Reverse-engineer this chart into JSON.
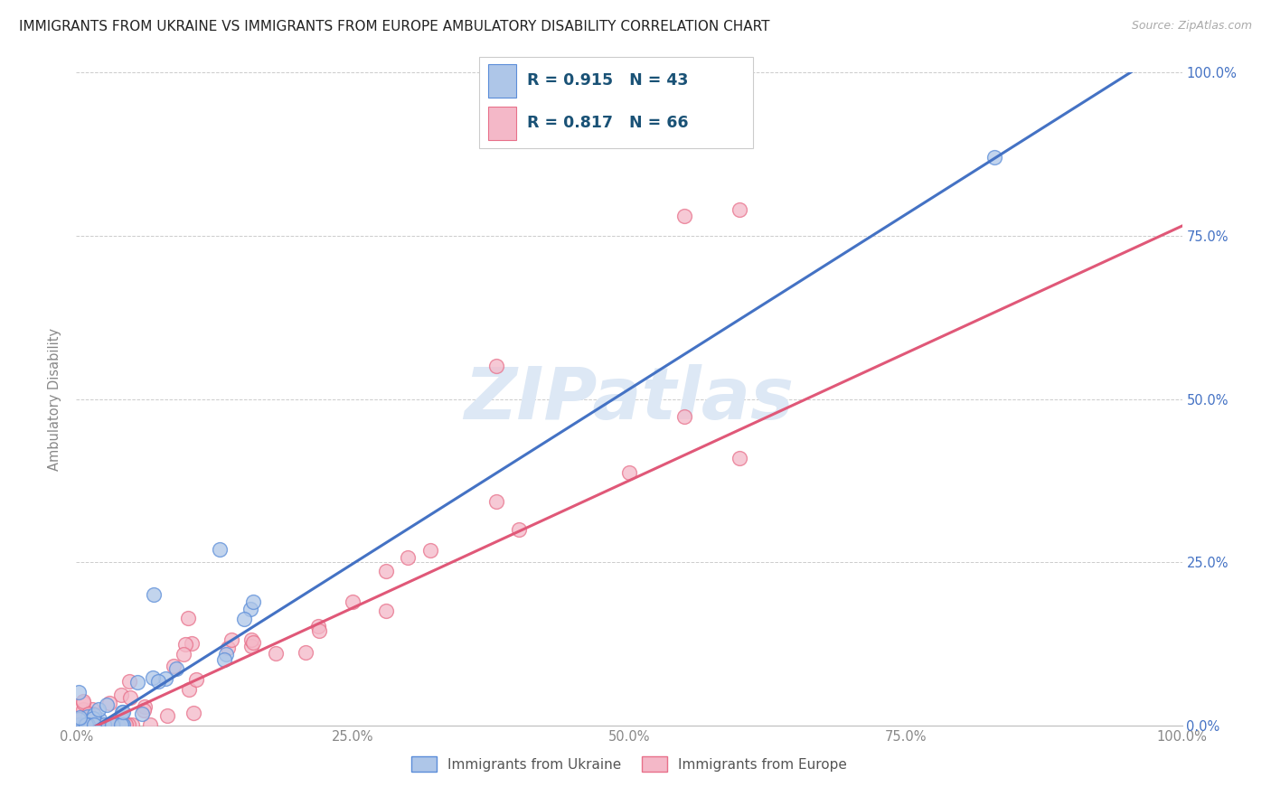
{
  "title": "IMMIGRANTS FROM UKRAINE VS IMMIGRANTS FROM EUROPE AMBULATORY DISABILITY CORRELATION CHART",
  "source": "Source: ZipAtlas.com",
  "ylabel": "Ambulatory Disability",
  "ukraine_label": "Immigrants from Ukraine",
  "europe_label": "Immigrants from Europe",
  "ukraine_R": 0.915,
  "ukraine_N": 43,
  "europe_R": 0.817,
  "europe_N": 66,
  "ukraine_fill_color": "#aec6e8",
  "europe_fill_color": "#f4b8c8",
  "ukraine_edge_color": "#5b8dd9",
  "europe_edge_color": "#e8708a",
  "ukraine_line_color": "#4472c4",
  "europe_line_color": "#e05878",
  "legend_text_color": "#1a5276",
  "right_axis_color": "#4472c4",
  "watermark_color": "#dde8f5",
  "ukraine_line_slope": 1.07,
  "ukraine_line_intercept": -2.0,
  "europe_line_slope": 0.78,
  "europe_line_intercept": -1.5
}
